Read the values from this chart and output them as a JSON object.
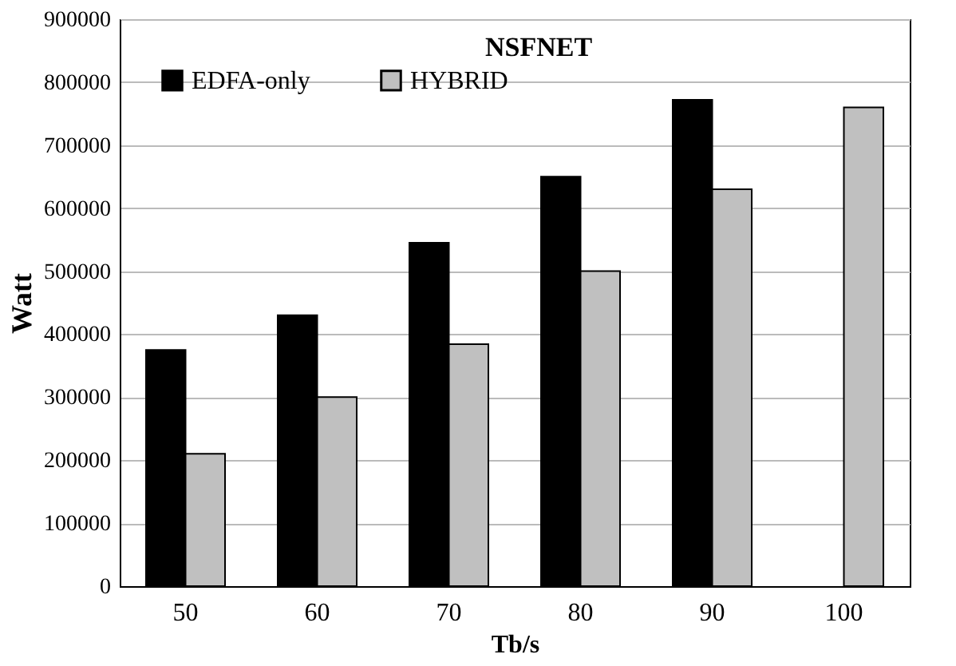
{
  "chart_data": {
    "type": "bar",
    "title": "NSFNET",
    "xlabel": "Tb/s",
    "ylabel": "Watt",
    "categories": [
      "50",
      "60",
      "70",
      "80",
      "90",
      "100"
    ],
    "series": [
      {
        "name": "EDFA-only",
        "color": "#000000",
        "values": [
          375000,
          430000,
          545000,
          650000,
          772000,
          null
        ]
      },
      {
        "name": "HYBRID",
        "color": "#c0c0c0",
        "values": [
          210000,
          300000,
          384000,
          500000,
          630000,
          760000
        ]
      }
    ],
    "ylim": [
      0,
      900000
    ],
    "yticks": [
      0,
      100000,
      200000,
      300000,
      400000,
      500000,
      600000,
      700000,
      800000,
      900000
    ],
    "grid": "y",
    "legend": "top left"
  }
}
